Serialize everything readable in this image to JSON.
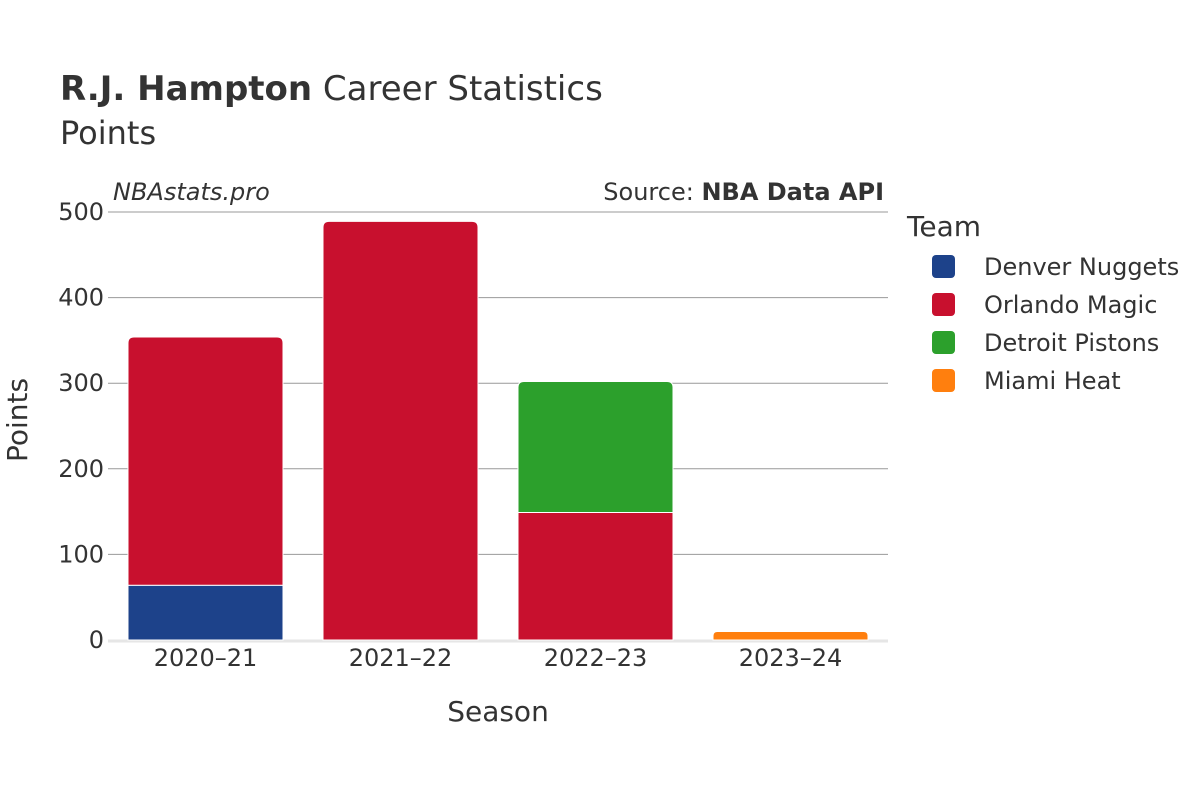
{
  "header": {
    "title_bold": "R.J. Hampton",
    "title_rest": " Career Statistics",
    "subtitle": "Points"
  },
  "watermark": "NBAstats.pro",
  "source": {
    "prefix": "Source: ",
    "name": "NBA Data API"
  },
  "chart_data": {
    "type": "bar",
    "stacked": true,
    "xlabel": "Season",
    "ylabel": "Points",
    "categories": [
      "2020–21",
      "2021–22",
      "2022–23",
      "2023–24"
    ],
    "ylim": [
      0,
      500
    ],
    "yticks": [
      0,
      100,
      200,
      300,
      400,
      500
    ],
    "grid": true,
    "legend_title": "Team",
    "legend_position": "right",
    "series": [
      {
        "name": "Denver Nuggets",
        "color": "#1d428a",
        "values": [
          64,
          0,
          0,
          0
        ]
      },
      {
        "name": "Orlando Magic",
        "color": "#c8102e",
        "values": [
          290,
          489,
          149,
          0
        ]
      },
      {
        "name": "Detroit Pistons",
        "color": "#2ca02c",
        "values": [
          0,
          0,
          153,
          0
        ]
      },
      {
        "name": "Miami Heat",
        "color": "#ff7f0e",
        "values": [
          0,
          0,
          0,
          10
        ]
      }
    ]
  }
}
